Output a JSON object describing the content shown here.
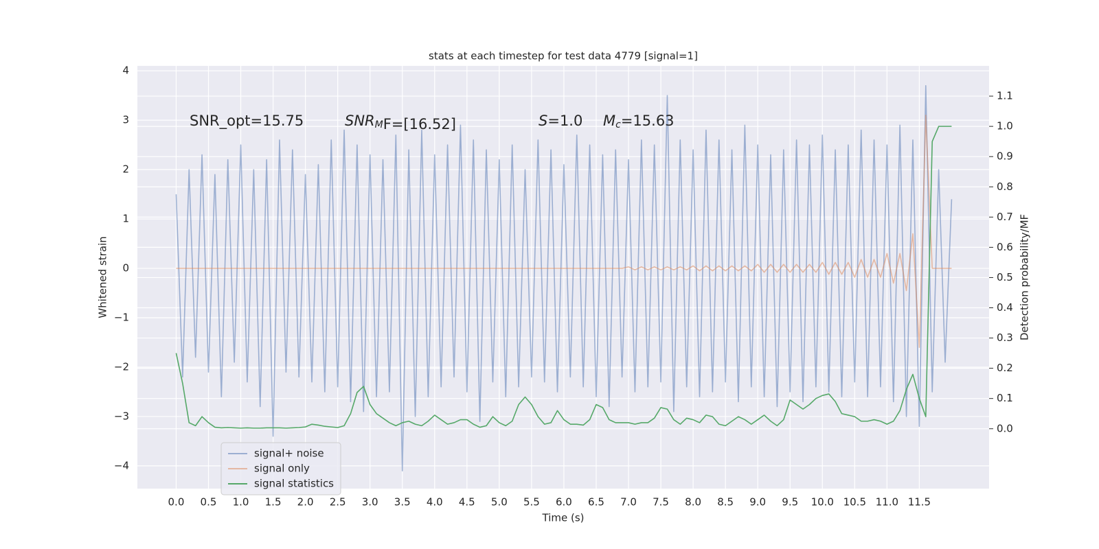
{
  "chart_data": {
    "type": "line",
    "title": "stats at each timestep for test data 4779 [signal=1]",
    "xlabel": "Time (s)",
    "ylabel": "Whitened strain",
    "y2label": "Detection probability/MF",
    "annotations": [
      {
        "text": "SNR_opt=15.75"
      },
      {
        "base": "SNR",
        "sub": "M",
        "rest": "F=[16.52]"
      },
      {
        "base": "S",
        "rest": "=1.0"
      },
      {
        "base": "M",
        "sub": "c",
        "rest": "=15.63"
      }
    ],
    "x": [
      0,
      0.1,
      0.2,
      0.3,
      0.4,
      0.5,
      0.6,
      0.7,
      0.8,
      0.9,
      1,
      1.1,
      1.2,
      1.3,
      1.4,
      1.5,
      1.6,
      1.7,
      1.8,
      1.9,
      2,
      2.1,
      2.2,
      2.3,
      2.4,
      2.5,
      2.6,
      2.7,
      2.8,
      2.9,
      3,
      3.1,
      3.2,
      3.3,
      3.4,
      3.5,
      3.6,
      3.7,
      3.8,
      3.9,
      4,
      4.1,
      4.2,
      4.3,
      4.4,
      4.5,
      4.6,
      4.7,
      4.8,
      4.9,
      5,
      5.1,
      5.2,
      5.3,
      5.4,
      5.5,
      5.6,
      5.7,
      5.8,
      5.9,
      6,
      6.1,
      6.2,
      6.3,
      6.4,
      6.5,
      6.6,
      6.7,
      6.8,
      6.9,
      7,
      7.1,
      7.2,
      7.3,
      7.4,
      7.5,
      7.6,
      7.7,
      7.8,
      7.9,
      8,
      8.1,
      8.2,
      8.3,
      8.4,
      8.5,
      8.6,
      8.7,
      8.8,
      8.9,
      9,
      9.1,
      9.2,
      9.3,
      9.4,
      9.5,
      9.6,
      9.7,
      9.8,
      9.9,
      10,
      10.1,
      10.2,
      10.3,
      10.4,
      10.5,
      10.6,
      10.7,
      10.8,
      10.9,
      11,
      11.1,
      11.2,
      11.3,
      11.4,
      11.5,
      11.6,
      11.7,
      11.8,
      11.9,
      12
    ],
    "series": [
      {
        "name": "signal+ noise",
        "color": "#4c72b0",
        "opacity": 0.5,
        "values": [
          1.5,
          -2.2,
          2.0,
          -1.8,
          2.3,
          -2.1,
          1.9,
          -2.6,
          2.2,
          -1.9,
          2.5,
          -2.3,
          2.0,
          -2.8,
          2.2,
          -3.4,
          2.6,
          -2.1,
          2.4,
          -2.2,
          1.9,
          -2.3,
          2.1,
          -2.5,
          2.6,
          -2.4,
          2.8,
          -2.7,
          2.5,
          -2.9,
          2.3,
          -2.6,
          2.2,
          -2.5,
          2.7,
          -4.1,
          2.4,
          -3.0,
          2.8,
          -2.6,
          2.3,
          -2.4,
          2.5,
          -2.2,
          2.9,
          -2.5,
          2.6,
          -3.1,
          2.4,
          -2.3,
          2.2,
          -2.6,
          2.5,
          -2.4,
          2.0,
          -2.2,
          2.6,
          -2.3,
          2.4,
          -2.5,
          2.1,
          -2.2,
          2.7,
          -2.4,
          2.5,
          -2.6,
          2.3,
          -2.8,
          2.4,
          -2.2,
          2.2,
          -2.5,
          2.6,
          -2.4,
          2.5,
          -2.3,
          3.5,
          -2.9,
          2.6,
          -2.4,
          2.4,
          -2.6,
          2.8,
          -2.5,
          2.6,
          -2.3,
          2.4,
          -2.7,
          2.9,
          -2.4,
          2.5,
          -2.6,
          2.3,
          -2.8,
          2.4,
          -2.5,
          2.6,
          -2.7,
          2.5,
          -2.4,
          2.7,
          -2.5,
          2.4,
          -2.6,
          2.5,
          -2.3,
          2.8,
          -2.6,
          2.6,
          -2.4,
          2.5,
          -2.7,
          2.9,
          -3.0,
          2.6,
          -3.2,
          3.7,
          -2.5,
          2.0,
          -1.9,
          1.4
        ]
      },
      {
        "name": "signal only",
        "color": "#dd8452",
        "opacity": 0.5,
        "values": [
          0,
          0,
          0,
          0,
          0,
          0,
          0,
          0,
          0,
          0,
          0,
          0,
          0,
          0,
          0,
          0,
          0,
          0,
          0,
          0,
          0,
          0,
          0,
          0,
          0,
          0,
          0,
          0,
          0,
          0,
          0,
          0,
          0,
          0,
          0,
          0,
          0,
          0,
          0,
          0,
          0,
          0,
          0,
          0,
          0,
          0,
          0,
          0,
          0,
          0,
          0,
          0,
          0,
          0,
          0,
          0,
          0,
          0,
          0,
          0,
          0,
          0,
          0,
          0,
          0,
          0,
          0,
          0,
          0,
          0,
          0.03,
          -0.03,
          0.03,
          -0.03,
          0.03,
          -0.03,
          0.03,
          -0.03,
          0.03,
          -0.03,
          0.05,
          -0.05,
          0.05,
          -0.05,
          0.05,
          -0.05,
          0.05,
          -0.05,
          0.05,
          -0.05,
          0.08,
          -0.08,
          0.08,
          -0.08,
          0.08,
          -0.08,
          0.08,
          -0.08,
          0.08,
          -0.08,
          0.12,
          -0.12,
          0.12,
          -0.12,
          0.12,
          -0.18,
          0.18,
          -0.18,
          0.18,
          -0.18,
          0.3,
          -0.3,
          0.3,
          -0.45,
          0.7,
          -1.6,
          3.1,
          0,
          0,
          0,
          0
        ]
      },
      {
        "name": "signal statistics",
        "color": "#55a868",
        "opacity": 1,
        "axis": "y2",
        "values": [
          0.25,
          0.15,
          0.02,
          0.01,
          0.04,
          0.02,
          0.005,
          0.003,
          0.004,
          0.003,
          0.002,
          0.003,
          0.002,
          0.002,
          0.003,
          0.003,
          0.003,
          0.002,
          0.003,
          0.004,
          0.006,
          0.015,
          0.012,
          0.008,
          0.006,
          0.004,
          0.01,
          0.05,
          0.12,
          0.14,
          0.08,
          0.05,
          0.035,
          0.02,
          0.01,
          0.02,
          0.025,
          0.015,
          0.01,
          0.025,
          0.045,
          0.03,
          0.015,
          0.02,
          0.03,
          0.03,
          0.015,
          0.005,
          0.01,
          0.04,
          0.02,
          0.01,
          0.025,
          0.08,
          0.105,
          0.08,
          0.04,
          0.015,
          0.02,
          0.06,
          0.03,
          0.015,
          0.015,
          0.012,
          0.03,
          0.08,
          0.07,
          0.03,
          0.02,
          0.02,
          0.02,
          0.015,
          0.02,
          0.02,
          0.035,
          0.07,
          0.065,
          0.03,
          0.015,
          0.035,
          0.03,
          0.02,
          0.045,
          0.04,
          0.015,
          0.01,
          0.025,
          0.04,
          0.03,
          0.015,
          0.03,
          0.045,
          0.025,
          0.01,
          0.03,
          0.095,
          0.08,
          0.065,
          0.08,
          0.1,
          0.11,
          0.115,
          0.09,
          0.05,
          0.045,
          0.04,
          0.025,
          0.025,
          0.03,
          0.025,
          0.015,
          0.025,
          0.06,
          0.13,
          0.18,
          0.1,
          0.04,
          0.95,
          1.0,
          1.0,
          1.0
        ]
      }
    ],
    "xlim": [
      -0.6,
      12.58
    ],
    "ylim": [
      -4.46,
      4.1
    ],
    "y2lim": [
      -0.198,
      1.2
    ],
    "xticks": [
      {
        "value": 0,
        "label": "0.0"
      },
      {
        "value": 0.5,
        "label": "0.5"
      },
      {
        "value": 1,
        "label": "1.0"
      },
      {
        "value": 1.5,
        "label": "1.5"
      },
      {
        "value": 2,
        "label": "2.0"
      },
      {
        "value": 2.5,
        "label": "2.5"
      },
      {
        "value": 3,
        "label": "3.0"
      },
      {
        "value": 3.5,
        "label": "3.5"
      },
      {
        "value": 4,
        "label": "4.0"
      },
      {
        "value": 4.5,
        "label": "4.5"
      },
      {
        "value": 5,
        "label": "5.0"
      },
      {
        "value": 5.5,
        "label": "5.5"
      },
      {
        "value": 6,
        "label": "6.0"
      },
      {
        "value": 6.5,
        "label": "6.5"
      },
      {
        "value": 7,
        "label": "7.0"
      },
      {
        "value": 7.5,
        "label": "7.5"
      },
      {
        "value": 8,
        "label": "8.0"
      },
      {
        "value": 8.5,
        "label": "8.5"
      },
      {
        "value": 9,
        "label": "9.0"
      },
      {
        "value": 9.5,
        "label": "9.5"
      },
      {
        "value": 10,
        "label": "10.0"
      },
      {
        "value": 10.5,
        "label": "10.5"
      },
      {
        "value": 11,
        "label": "11.0"
      },
      {
        "value": 11.5,
        "label": "11.5"
      }
    ],
    "yticks": [
      {
        "value": -4,
        "label": "−4"
      },
      {
        "value": -3,
        "label": "−3"
      },
      {
        "value": -2,
        "label": "−2"
      },
      {
        "value": -1,
        "label": "−1"
      },
      0,
      1,
      2,
      3,
      4
    ],
    "y2ticks": [
      {
        "value": 0,
        "label": "0.0"
      },
      {
        "value": 0.1,
        "label": "0.1"
      },
      {
        "value": 0.2,
        "label": "0.2"
      },
      {
        "value": 0.3,
        "label": "0.3"
      },
      {
        "value": 0.4,
        "label": "0.4"
      },
      {
        "value": 0.5,
        "label": "0.5"
      },
      {
        "value": 0.6,
        "label": "0.6"
      },
      {
        "value": 0.7,
        "label": "0.7"
      },
      {
        "value": 0.8,
        "label": "0.8"
      },
      {
        "value": 0.9,
        "label": "0.9"
      },
      {
        "value": 1,
        "label": "1.0"
      },
      {
        "value": 1.1,
        "label": "1.1"
      }
    ],
    "grid": true,
    "legend_loc": "lower left"
  }
}
